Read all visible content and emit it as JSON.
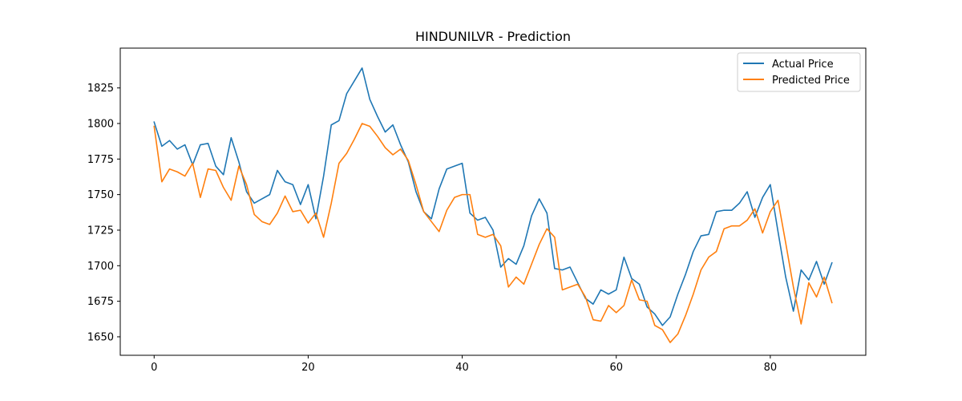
{
  "chart_data": {
    "type": "line",
    "title": "HINDUNILVR - Prediction",
    "xlabel": "",
    "ylabel": "",
    "xlim": [
      -4.4,
      92.4
    ],
    "ylim": [
      1637,
      1853
    ],
    "xticks": [
      0,
      20,
      40,
      60,
      80
    ],
    "yticks": [
      1650,
      1675,
      1700,
      1725,
      1750,
      1775,
      1800,
      1825
    ],
    "grid": false,
    "legend_position": "upper-right",
    "series": [
      {
        "name": "Actual Price",
        "color": "#1f77b4",
        "values": [
          1801,
          1784,
          1788,
          1782,
          1785,
          1771,
          1785,
          1786,
          1770,
          1764,
          1790,
          1773,
          1752,
          1744,
          1747,
          1750,
          1767,
          1759,
          1757,
          1743,
          1757,
          1733,
          1763,
          1799,
          1802,
          1821,
          1830,
          1839,
          1817,
          1805,
          1794,
          1799,
          1785,
          1773,
          1752,
          1738,
          1733,
          1754,
          1768,
          1770,
          1772,
          1737,
          1732,
          1734,
          1725,
          1699,
          1705,
          1701,
          1714,
          1735,
          1747,
          1737,
          1698,
          1697,
          1699,
          1688,
          1677,
          1673,
          1683,
          1680,
          1683,
          1706,
          1691,
          1687,
          1671,
          1666,
          1658,
          1664,
          1680,
          1694,
          1710,
          1721,
          1722,
          1738,
          1739,
          1739,
          1744,
          1752,
          1734,
          1748,
          1757,
          1724,
          1692,
          1668,
          1697,
          1690,
          1703,
          1687,
          1702
        ]
      },
      {
        "name": "Predicted Price",
        "color": "#ff7f0e",
        "values": [
          1798,
          1759,
          1768,
          1766,
          1763,
          1772,
          1748,
          1768,
          1767,
          1755,
          1746,
          1770,
          1757,
          1736,
          1731,
          1729,
          1737,
          1749,
          1738,
          1739,
          1730,
          1737,
          1720,
          1744,
          1772,
          1779,
          1789,
          1800,
          1798,
          1791,
          1783,
          1778,
          1782,
          1774,
          1757,
          1738,
          1731,
          1724,
          1739,
          1748,
          1750,
          1750,
          1722,
          1720,
          1722,
          1714,
          1685,
          1692,
          1687,
          1701,
          1715,
          1726,
          1720,
          1683,
          1685,
          1687,
          1678,
          1662,
          1661,
          1672,
          1667,
          1672,
          1690,
          1676,
          1675,
          1658,
          1655,
          1646,
          1652,
          1665,
          1680,
          1697,
          1706,
          1710,
          1726,
          1728,
          1728,
          1732,
          1740,
          1723,
          1738,
          1746,
          1716,
          1685,
          1659,
          1688,
          1678,
          1692,
          1674
        ]
      }
    ]
  }
}
